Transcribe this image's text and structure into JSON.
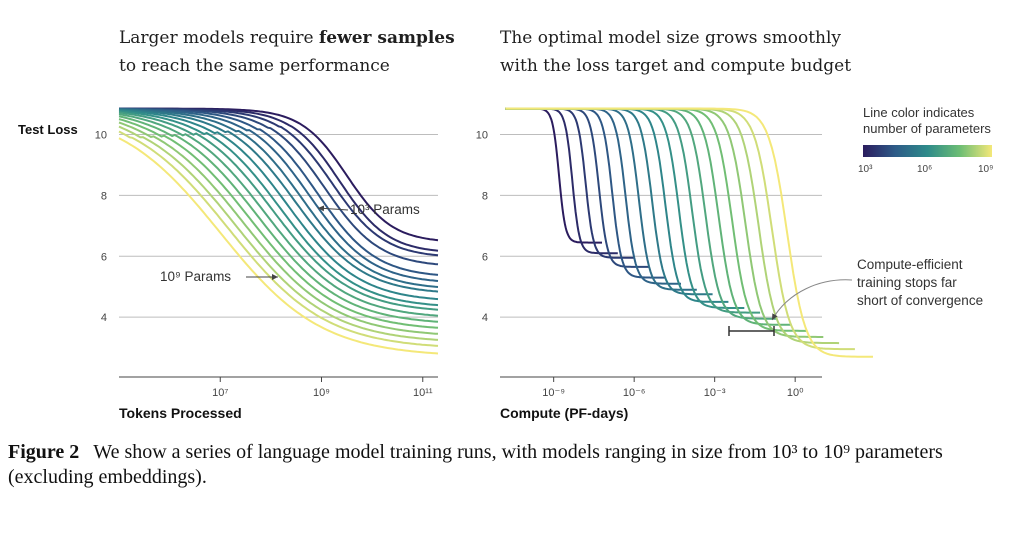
{
  "panels": {
    "left_title_line1": "Larger models require ",
    "left_title_bold": "fewer samples",
    "left_title_line2": "to reach the same performance",
    "right_title_line1": "The optimal model size grows smoothly",
    "right_title_line2": "with the loss target and compute budget"
  },
  "caption": {
    "label": "Figure 2",
    "text": "We show a series of language model training runs, with models ranging in size from 10³ to 10⁹ parameters (excluding embeddings)."
  },
  "colorbar": {
    "title_line1": "Line color indicates",
    "title_line2": "number of parameters",
    "ticks": [
      "10³",
      "10⁶",
      "10⁹"
    ],
    "gradient_colors": [
      "#2b1c5e",
      "#2e5b88",
      "#2e8b8a",
      "#6cbd74",
      "#f4e879"
    ]
  },
  "chart_data": [
    {
      "type": "line",
      "ylabel": "Test Loss",
      "xlabel": "Tokens Processed",
      "x_scale": "log",
      "xlim": [
        100000.0,
        200000000000.0
      ],
      "ylim": [
        2.2,
        11
      ],
      "xticks": [
        "10⁷",
        "10⁹",
        "10¹¹"
      ],
      "yticks": [
        4,
        6,
        8,
        10
      ],
      "grid": "horizontal",
      "annotations": [
        "10³ Params",
        "10⁹ Params"
      ],
      "series_params_log10": [
        3,
        3.35,
        3.7,
        4.05,
        4.4,
        4.75,
        5.1,
        5.45,
        5.8,
        6.15,
        6.5,
        6.85,
        7.2,
        7.55,
        7.9,
        8.25,
        8.6,
        9
      ],
      "final_loss": [
        6.45,
        6.1,
        5.95,
        5.65,
        5.3,
        5.1,
        4.9,
        4.75,
        4.5,
        4.3,
        4.15,
        3.95,
        3.75,
        3.55,
        3.35,
        3.15,
        2.95,
        2.7
      ]
    },
    {
      "type": "line",
      "xlabel": "Compute (PF-days)",
      "x_scale": "log",
      "xlim": [
        1e-11,
        10.0
      ],
      "ylim": [
        2.2,
        11
      ],
      "xticks": [
        "10⁻⁹",
        "10⁻⁶",
        "10⁻³",
        "10⁰"
      ],
      "yticks": [
        4,
        6,
        8,
        10
      ],
      "grid": "horizontal",
      "annotations": [
        "Compute-efficient",
        "training stops far",
        "short of convergence"
      ],
      "series_params_log10": [
        3,
        3.35,
        3.7,
        4.05,
        4.4,
        4.75,
        5.1,
        5.45,
        5.8,
        6.15,
        6.5,
        6.85,
        7.2,
        7.55,
        7.9,
        8.25,
        8.6,
        9
      ],
      "final_loss": [
        6.45,
        6.1,
        5.95,
        5.65,
        5.3,
        5.1,
        4.9,
        4.75,
        4.5,
        4.3,
        4.15,
        3.95,
        3.75,
        3.55,
        3.35,
        3.15,
        2.95,
        2.7
      ]
    }
  ]
}
